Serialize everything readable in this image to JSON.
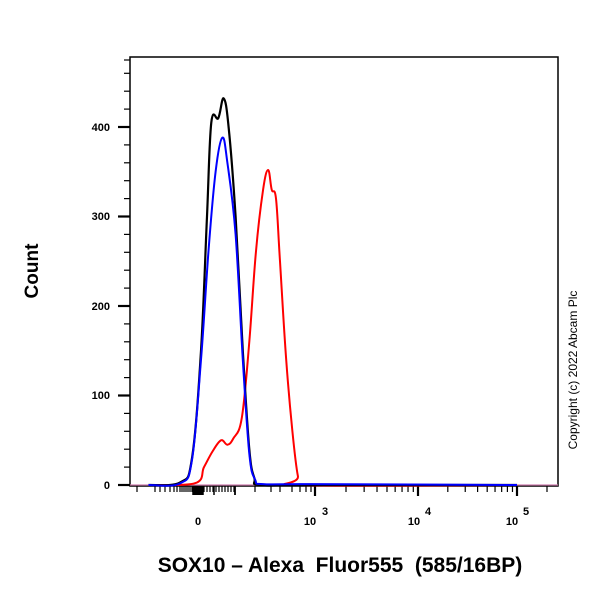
{
  "chart_data": {
    "type": "line",
    "subtype": "flow-cytometry-histogram",
    "title": "",
    "xlabel": "SOX10 – Alexa  Fluor555  (585/16BP)",
    "ylabel": "Count",
    "x_scale": "biexponential",
    "x_tick_labels": [
      "0",
      "10^3",
      "10^4",
      "10^5"
    ],
    "y_tick_labels": [
      "0",
      "100",
      "200",
      "300",
      "400"
    ],
    "ylim": [
      0,
      460
    ],
    "grid": false,
    "legend": null,
    "annotation": "Copyright (c) 2022 Abcam Plc",
    "series": [
      {
        "name": "black",
        "color": "#000000",
        "points": [
          [
            -200,
            0
          ],
          [
            -60,
            3
          ],
          [
            -20,
            30
          ],
          [
            10,
            150
          ],
          [
            30,
            300
          ],
          [
            45,
            405
          ],
          [
            70,
            410
          ],
          [
            90,
            432
          ],
          [
            110,
            400
          ],
          [
            140,
            300
          ],
          [
            175,
            150
          ],
          [
            210,
            40
          ],
          [
            240,
            8
          ],
          [
            280,
            0
          ],
          [
            1000,
            0
          ],
          [
            100000,
            0
          ]
        ]
      },
      {
        "name": "blue",
        "color": "#0000ff",
        "points": [
          [
            -200,
            0
          ],
          [
            -60,
            2
          ],
          [
            -20,
            28
          ],
          [
            10,
            140
          ],
          [
            35,
            260
          ],
          [
            60,
            350
          ],
          [
            85,
            388
          ],
          [
            105,
            360
          ],
          [
            140,
            280
          ],
          [
            175,
            140
          ],
          [
            210,
            35
          ],
          [
            245,
            6
          ],
          [
            300,
            1
          ],
          [
            900,
            1
          ],
          [
            100000,
            0
          ]
        ]
      },
      {
        "name": "red",
        "color": "#ff0000",
        "points": [
          [
            -200,
            0
          ],
          [
            -10,
            2
          ],
          [
            20,
            20
          ],
          [
            50,
            38
          ],
          [
            80,
            50
          ],
          [
            105,
            45
          ],
          [
            130,
            52
          ],
          [
            170,
            75
          ],
          [
            210,
            160
          ],
          [
            250,
            260
          ],
          [
            300,
            330
          ],
          [
            340,
            352
          ],
          [
            370,
            330
          ],
          [
            410,
            320
          ],
          [
            450,
            250
          ],
          [
            520,
            140
          ],
          [
            600,
            60
          ],
          [
            680,
            10
          ],
          [
            760,
            0
          ],
          [
            100000,
            0
          ]
        ]
      }
    ]
  },
  "axes": {
    "y_ticks": [
      {
        "label": "0",
        "value": 0
      },
      {
        "label": "100",
        "value": 100
      },
      {
        "label": "200",
        "value": 200
      },
      {
        "label": "300",
        "value": 300
      },
      {
        "label": "400",
        "value": 400
      }
    ],
    "x_ticks": [
      {
        "label": "0",
        "base": "",
        "exp": ""
      },
      {
        "label": "10^3",
        "base": "10",
        "exp": "3"
      },
      {
        "label": "10^4",
        "base": "10",
        "exp": "4"
      },
      {
        "label": "10^5",
        "base": "10",
        "exp": "5"
      }
    ],
    "xlabel": "SOX10 – Alexa  Fluor555  (585/16BP)",
    "ylabel": "Count"
  },
  "copyright": "Copyright (c) 2022 Abcam Plc"
}
